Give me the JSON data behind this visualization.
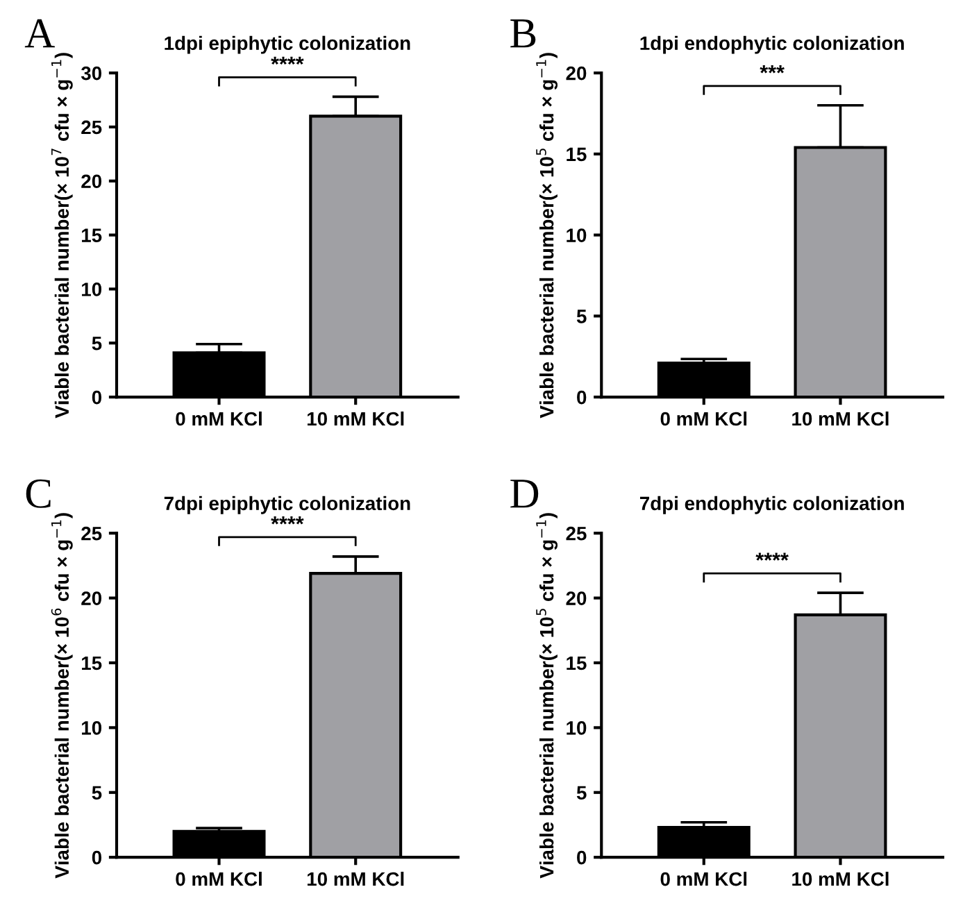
{
  "chart_data": [
    {
      "type": "bar",
      "title": "1dpi epiphytic colonization",
      "ylabel": "Viable bacterial number(× 10$^{7}$ cfu × g$^{−1}$)",
      "annotations": [
        "A",
        "****"
      ],
      "categories": [
        "0 mM KCl",
        "10 mM KCl"
      ],
      "values": [
        4.1,
        26
      ],
      "colors": [
        "#000000",
        "#a0a0a4"
      ],
      "errors": [
        [
          4.1,
          4.9
        ],
        [
          26,
          27.8
        ]
      ],
      "ylim": [
        0,
        30
      ],
      "yticks": [
        0,
        5,
        10,
        15,
        20,
        25,
        30
      ],
      "grid": false,
      "legend": false
    },
    {
      "type": "bar",
      "title": "1dpi endophytic colonization",
      "ylabel": "Viable bacterial number(× 10$^{5}$ cfu × g$^{−1}$)",
      "annotations": [
        "B",
        "***"
      ],
      "categories": [
        "0 mM KCl",
        "10 mM KCl"
      ],
      "values": [
        2.1,
        15.4
      ],
      "colors": [
        "#000000",
        "#a0a0a4"
      ],
      "errors": [
        [
          2.1,
          2.35
        ],
        [
          15.4,
          18
        ]
      ],
      "ylim": [
        0,
        20
      ],
      "yticks": [
        0,
        5,
        10,
        15,
        20
      ],
      "grid": false,
      "legend": false
    },
    {
      "type": "bar",
      "title": "7dpi epiphytic colonization",
      "ylabel": "Viable bacterial number(× 10$^{6}$ cfu × g$^{−1}$)",
      "annotations": [
        "C",
        "****"
      ],
      "categories": [
        "0 mM KCl",
        "10 mM KCl"
      ],
      "values": [
        2.0,
        21.9
      ],
      "colors": [
        "#000000",
        "#a0a0a4"
      ],
      "errors": [
        [
          2.0,
          2.25
        ],
        [
          21.9,
          23.2
        ]
      ],
      "ylim": [
        0,
        25
      ],
      "yticks": [
        0,
        5,
        10,
        15,
        20,
        25
      ],
      "grid": false,
      "legend": false
    },
    {
      "type": "bar",
      "title": "7dpi endophytic colonization",
      "ylabel": "Viable bacterial number(× 10$^{5}$ cfu × g$^{−1}$)",
      "annotations": [
        "D",
        "****"
      ],
      "categories": [
        "0 mM KCl",
        "10 mM KCl"
      ],
      "values": [
        2.3,
        18.7
      ],
      "colors": [
        "#000000",
        "#a0a0a4"
      ],
      "errors": [
        [
          2.3,
          2.7
        ],
        [
          18.7,
          20.4
        ]
      ],
      "ylim": [
        0,
        25
      ],
      "yticks": [
        0,
        5,
        10,
        15,
        20,
        25
      ],
      "grid": false,
      "legend": false
    }
  ]
}
